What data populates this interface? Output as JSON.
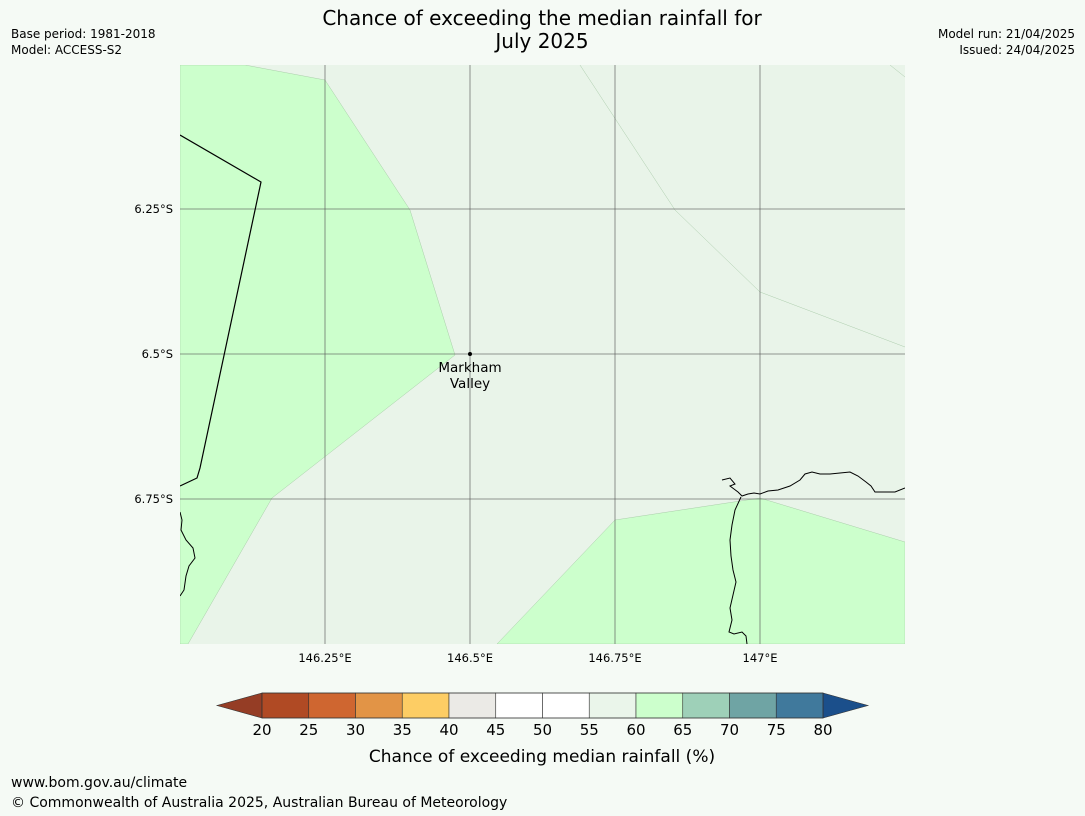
{
  "title": {
    "line1": "Chance of exceeding the median rainfall for",
    "line2": "July 2025"
  },
  "meta_left": {
    "base_period": "Base period: 1981-2018",
    "model": "Model: ACCESS-S2"
  },
  "meta_right": {
    "model_run": "Model run: 21/04/2025",
    "issued": "Issued: 24/04/2025"
  },
  "map": {
    "x_ticks": [
      {
        "label": "146.25°E",
        "lon": 146.25
      },
      {
        "label": "146.5°E",
        "lon": 146.5
      },
      {
        "label": "146.75°E",
        "lon": 146.75
      },
      {
        "label": "147°E",
        "lon": 147.0
      }
    ],
    "y_ticks": [
      {
        "label": "6.25°S",
        "lat": -6.25
      },
      {
        "label": "6.5°S",
        "lat": -6.5
      },
      {
        "label": "6.75°S",
        "lat": -6.75
      }
    ],
    "lon_range": [
      146.0,
      147.25
    ],
    "lat_range": [
      -6.0,
      -7.0
    ],
    "place": {
      "name_line1": "Markham",
      "name_line2": "Valley",
      "lon": 146.5,
      "lat": -6.5
    },
    "zones": [
      {
        "category": "55-60",
        "color": "#e9f4e9"
      },
      {
        "category": "60-65",
        "color": "#ccffcc"
      }
    ]
  },
  "colorbar": {
    "label": "Chance of exceeding median rainfall (%)",
    "ticks": [
      "20",
      "25",
      "30",
      "35",
      "40",
      "45",
      "50",
      "55",
      "60",
      "65",
      "70",
      "75",
      "80"
    ],
    "colors": [
      "#b04a24",
      "#cf6630",
      "#e29446",
      "#fdcd64",
      "#ebeae6",
      "#ffffff",
      "#ffffff",
      "#eaf5ea",
      "#ccffcc",
      "#9ed0b8",
      "#6fa4a4",
      "#40799c"
    ],
    "under_color": "#953d25",
    "over_color": "#1b4f8b"
  },
  "footer": {
    "url": "www.bom.gov.au/climate",
    "copyright": "© Commonwealth of Australia 2025, Australian Bureau of Meteorology"
  }
}
